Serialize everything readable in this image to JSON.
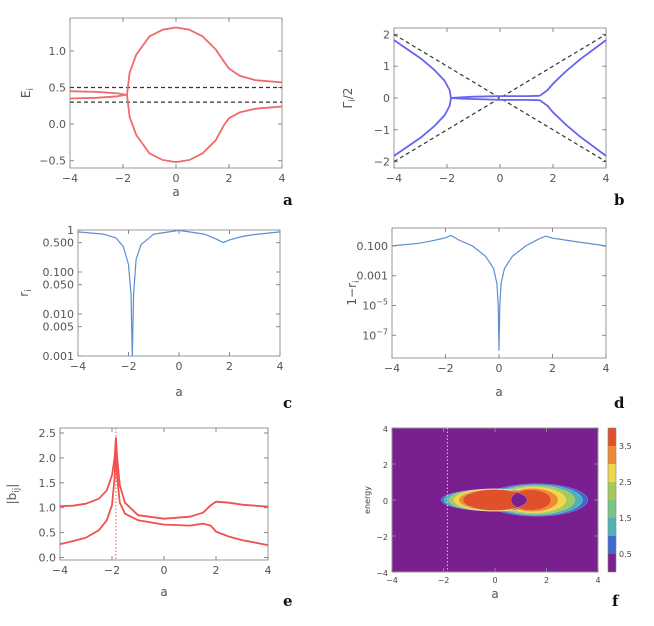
{
  "chart_data": [
    {
      "panel": "a",
      "type": "line",
      "xlabel": "a",
      "ylabel": "E_i",
      "xlim": [
        -4,
        4
      ],
      "ylim": [
        -0.6,
        1.45
      ],
      "xticks": [
        "-4",
        "-2",
        "0",
        "2",
        "4"
      ],
      "yticks": [
        "-0.5",
        "0.0",
        "0.5",
        "1.0"
      ],
      "color": "#f06a6a",
      "reference_lines": [
        0.5,
        0.3
      ],
      "reference_color": "#333333",
      "series": [
        {
          "x": [
            -4,
            -3,
            -2.2,
            -1.9,
            -1.85
          ],
          "y": [
            0.45,
            0.44,
            0.42,
            0.4,
            0.4
          ]
        },
        {
          "x": [
            -4,
            -3,
            -2.2,
            -1.9,
            -1.85
          ],
          "y": [
            0.35,
            0.36,
            0.38,
            0.4,
            0.4
          ]
        },
        {
          "x": [
            -1.85,
            -1.75,
            -1.5,
            -1,
            -0.5,
            0,
            0.5,
            1,
            1.5,
            1.8,
            2,
            2.4,
            3,
            4
          ],
          "y": [
            0.4,
            0.7,
            0.95,
            1.2,
            1.29,
            1.32,
            1.29,
            1.2,
            1.02,
            0.86,
            0.76,
            0.66,
            0.6,
            0.57
          ]
        },
        {
          "x": [
            -1.85,
            -1.75,
            -1.5,
            -1,
            -0.5,
            0,
            0.5,
            1,
            1.5,
            1.8,
            2,
            2.4,
            3,
            4
          ],
          "y": [
            0.4,
            0.1,
            -0.15,
            -0.4,
            -0.49,
            -0.52,
            -0.49,
            -0.4,
            -0.22,
            -0.02,
            0.08,
            0.16,
            0.21,
            0.24
          ]
        }
      ]
    },
    {
      "panel": "b",
      "type": "line",
      "xlabel": "",
      "ylabel": "Γ_i/2",
      "xlim": [
        -4,
        4
      ],
      "ylim": [
        -2.2,
        2.2
      ],
      "xticks": [
        "-4",
        "-2",
        "0",
        "2",
        "4"
      ],
      "yticks": [
        "-2",
        "-1",
        "0",
        "1",
        "2"
      ],
      "color": "#6464f0",
      "reference_color": "#333333",
      "reference_diagonals": [
        {
          "x": [
            -4,
            4
          ],
          "y": [
            2,
            -2
          ]
        },
        {
          "x": [
            -4,
            4
          ],
          "y": [
            -2,
            2
          ]
        }
      ],
      "series": [
        {
          "x": [
            -4,
            -3,
            -2.5,
            -2.1,
            -1.9,
            -1.85
          ],
          "y": [
            1.82,
            1.25,
            0.9,
            0.55,
            0.25,
            0.0
          ]
        },
        {
          "x": [
            -4,
            -3,
            -2.5,
            -2.1,
            -1.9,
            -1.85
          ],
          "y": [
            -1.82,
            -1.25,
            -0.9,
            -0.55,
            -0.25,
            0.0
          ]
        },
        {
          "x": [
            -1.85,
            -1.5,
            -1,
            0,
            1,
            1.5
          ],
          "y": [
            0.0,
            0.02,
            0.04,
            0.06,
            0.06,
            0.07
          ]
        },
        {
          "x": [
            -1.85,
            -1.5,
            -1,
            0,
            1,
            1.5
          ],
          "y": [
            0.0,
            -0.02,
            -0.03,
            -0.06,
            -0.06,
            -0.07
          ]
        },
        {
          "x": [
            1.5,
            1.8,
            2,
            2.5,
            3,
            4
          ],
          "y": [
            0.07,
            0.25,
            0.45,
            0.85,
            1.2,
            1.82
          ]
        },
        {
          "x": [
            1.5,
            1.8,
            2,
            2.5,
            3,
            4
          ],
          "y": [
            -0.07,
            -0.25,
            -0.45,
            -0.85,
            -1.2,
            -1.82
          ]
        }
      ]
    },
    {
      "panel": "c",
      "type": "line",
      "xlabel": "a",
      "ylabel": "r_i",
      "scale_y": "log",
      "xlim": [
        -4,
        4
      ],
      "ylim": [
        0.001,
        1
      ],
      "xticks": [
        "-4",
        "-2",
        "0",
        "2",
        "4"
      ],
      "yticks": [
        "0.001",
        "0.005",
        "0.010",
        "0.050",
        "0.100",
        "0.500",
        "1"
      ],
      "color": "#5b8fd0",
      "series": [
        {
          "x": [
            -4,
            -3,
            -2.5,
            -2.2,
            -2,
            -1.9,
            -1.85,
            -1.8,
            -1.7,
            -1.5,
            -1,
            0,
            1,
            1.5,
            1.75,
            2,
            2.5,
            3,
            4
          ],
          "y": [
            0.9,
            0.8,
            0.65,
            0.4,
            0.15,
            0.03,
            0.001,
            0.03,
            0.2,
            0.45,
            0.8,
            0.98,
            0.8,
            0.6,
            0.5,
            0.58,
            0.7,
            0.78,
            0.9
          ]
        }
      ]
    },
    {
      "panel": "d",
      "type": "line",
      "xlabel": "a",
      "ylabel": "1−r_i",
      "scale_y": "log",
      "xlim": [
        -4,
        4
      ],
      "ylim": [
        3e-09,
        1.6
      ],
      "xticks": [
        "-4",
        "-2",
        "0",
        "2",
        "4"
      ],
      "yticks": [
        "10^-7",
        "10^-5",
        "0.001",
        "0.100"
      ],
      "color": "#5b8fd0",
      "series": [
        {
          "x": [
            -4,
            -3,
            -2.5,
            -2,
            -1.8,
            -1.5,
            -1,
            -0.5,
            -0.2,
            -0.08,
            -0.03,
            0,
            0.03,
            0.08,
            0.2,
            0.5,
            1,
            1.5,
            1.75,
            2,
            3,
            4
          ],
          "y": [
            0.1,
            0.15,
            0.22,
            0.35,
            0.5,
            0.25,
            0.1,
            0.02,
            0.003,
            0.0003,
            1e-05,
            1e-08,
            1e-05,
            0.0003,
            0.003,
            0.02,
            0.1,
            0.3,
            0.45,
            0.33,
            0.18,
            0.1
          ]
        }
      ]
    },
    {
      "panel": "e",
      "type": "line",
      "xlabel": "a",
      "ylabel": "|b_ij|",
      "xlim": [
        -4,
        4
      ],
      "ylim": [
        -0.05,
        2.6
      ],
      "xticks": [
        "-4",
        "-2",
        "0",
        "2",
        "4"
      ],
      "yticks": [
        "0.0",
        "0.5",
        "1.0",
        "1.5",
        "2.0",
        "2.5"
      ],
      "color": "#f05050",
      "guide_line_x": -1.85,
      "series": [
        {
          "x": [
            -4,
            -3.5,
            -3,
            -2.5,
            -2.2,
            -2,
            -1.9,
            -1.85,
            -1.8,
            -1.7,
            -1.5,
            -1,
            0,
            1,
            1.5,
            1.8,
            2,
            2.5,
            3,
            4
          ],
          "y": [
            1.03,
            1.04,
            1.08,
            1.18,
            1.35,
            1.65,
            2.0,
            2.4,
            2.0,
            1.45,
            1.1,
            0.85,
            0.78,
            0.82,
            0.9,
            1.05,
            1.12,
            1.1,
            1.06,
            1.02
          ]
        },
        {
          "x": [
            -4,
            -3.5,
            -3,
            -2.5,
            -2.2,
            -2,
            -1.9,
            -1.85,
            -1.8,
            -1.7,
            -1.5,
            -1,
            0,
            1,
            1.5,
            1.8,
            2,
            2.5,
            3,
            4
          ],
          "y": [
            0.27,
            0.33,
            0.4,
            0.55,
            0.75,
            1.05,
            1.6,
            2.4,
            1.6,
            1.1,
            0.88,
            0.75,
            0.66,
            0.64,
            0.68,
            0.64,
            0.52,
            0.42,
            0.35,
            0.25
          ]
        }
      ]
    },
    {
      "panel": "f",
      "type": "heatmap",
      "xlabel": "a",
      "ylabel": "energy",
      "xlim": [
        -4,
        4
      ],
      "ylim": [
        -4,
        4
      ],
      "xticks": [
        "-4",
        "-2",
        "0",
        "2",
        "4"
      ],
      "yticks": [
        "-4",
        "-2",
        "0",
        "2",
        "4"
      ],
      "colorbar_ticks": [
        "0.5",
        "1.5",
        "2.5",
        "3.5"
      ],
      "colorbar_range": [
        0,
        4
      ],
      "guide_line_x": -1.85,
      "background_color": "#7a1f8f",
      "levels": [
        {
          "value": 0.5,
          "color": "#3a6ad0",
          "cx": 1.6,
          "rx": 2.0,
          "ry": 0.9,
          "hole_cx": 0.1,
          "hole_rx": 2.2,
          "hole_ry": 0.6
        },
        {
          "value": 1.5,
          "color": "#4fb0b8",
          "cx": 1.6,
          "rx": 1.8,
          "ry": 0.85,
          "hole_cx": 0.0,
          "hole_rx": 2.0,
          "hole_ry": 0.62
        },
        {
          "value": 2.0,
          "color": "#a7c95a",
          "cx": 1.55,
          "rx": 1.55,
          "ry": 0.8,
          "hole_cx": 0.0,
          "hole_rx": 1.8,
          "hole_ry": 0.62
        },
        {
          "value": 2.5,
          "color": "#f0d64a",
          "cx": 1.5,
          "rx": 1.25,
          "ry": 0.72,
          "hole_cx": 0.0,
          "hole_rx": 1.6,
          "hole_ry": 0.62
        },
        {
          "value": 3.0,
          "color": "#f08a30",
          "cx": 1.45,
          "rx": 1.0,
          "ry": 0.65,
          "hole_cx": 0.0,
          "hole_rx": 1.4,
          "hole_ry": 0.6
        },
        {
          "value": 3.5,
          "color": "#e0502a",
          "cx": 1.4,
          "rx": 0.78,
          "ry": 0.58,
          "hole_cx": 0.0,
          "hole_rx": 1.25,
          "hole_ry": 0.58
        }
      ],
      "colorbar_colors": [
        "#7a1f8f",
        "#3a6ad0",
        "#4fb0b8",
        "#7cc38a",
        "#a7c95a",
        "#f0d64a",
        "#f08a30",
        "#e0502a"
      ]
    }
  ]
}
